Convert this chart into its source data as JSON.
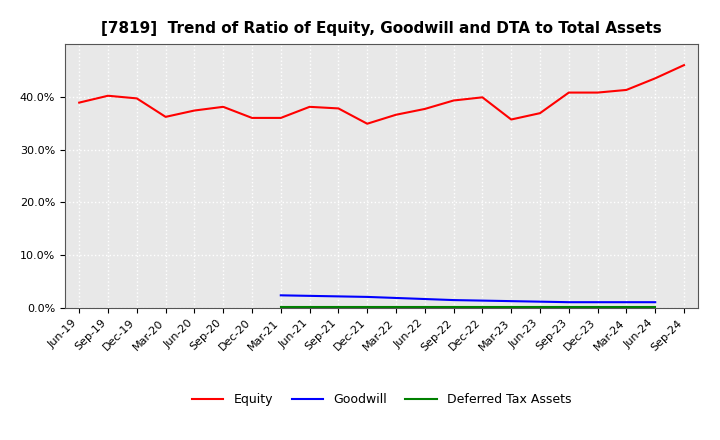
{
  "title": "[7819]  Trend of Ratio of Equity, Goodwill and DTA to Total Assets",
  "x_labels": [
    "Jun-19",
    "Sep-19",
    "Dec-19",
    "Mar-20",
    "Jun-20",
    "Sep-20",
    "Dec-20",
    "Mar-21",
    "Jun-21",
    "Sep-21",
    "Dec-21",
    "Mar-22",
    "Jun-22",
    "Sep-22",
    "Dec-22",
    "Mar-23",
    "Jun-23",
    "Sep-23",
    "Dec-23",
    "Mar-24",
    "Jun-24",
    "Sep-24"
  ],
  "equity": [
    0.389,
    0.402,
    0.397,
    0.362,
    0.374,
    0.381,
    0.36,
    0.36,
    0.381,
    0.378,
    0.349,
    0.366,
    0.377,
    0.393,
    0.399,
    0.357,
    0.369,
    0.408,
    0.408,
    0.413,
    0.435,
    0.46
  ],
  "goodwill": [
    null,
    null,
    null,
    null,
    null,
    null,
    null,
    0.024,
    0.023,
    0.022,
    0.021,
    0.019,
    0.017,
    0.015,
    0.014,
    0.013,
    0.012,
    0.011,
    0.011,
    0.011,
    0.011,
    null
  ],
  "dta": [
    null,
    null,
    null,
    null,
    null,
    null,
    null,
    0.001,
    0.001,
    0.001,
    0.001,
    0.001,
    0.001,
    0.001,
    0.001,
    0.001,
    0.001,
    0.001,
    0.001,
    0.001,
    0.001,
    null
  ],
  "equity_color": "#ff0000",
  "goodwill_color": "#0000ff",
  "dta_color": "#008000",
  "background_color": "#ffffff",
  "plot_bg_color": "#e8e8e8",
  "ylim": [
    0.0,
    0.5
  ],
  "yticks": [
    0.0,
    0.1,
    0.2,
    0.3,
    0.4
  ],
  "grid_color": "#ffffff",
  "legend_labels": [
    "Equity",
    "Goodwill",
    "Deferred Tax Assets"
  ],
  "title_fontsize": 11,
  "tick_fontsize": 8
}
